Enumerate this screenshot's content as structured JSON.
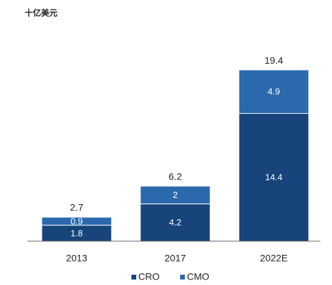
{
  "chart_data": {
    "type": "stacked_bar",
    "y_label": "十亿美元",
    "categories": [
      "2013",
      "2017",
      "2022E"
    ],
    "series": [
      {
        "name": "CRO",
        "color": "#17447a",
        "values": [
          1.8,
          4.2,
          14.4
        ]
      },
      {
        "name": "CMO",
        "color": "#2b69ad",
        "values": [
          0.9,
          2.0,
          4.9
        ]
      }
    ],
    "totals": [
      2.7,
      6.2,
      19.4
    ],
    "ylim": [
      0,
      20
    ]
  }
}
